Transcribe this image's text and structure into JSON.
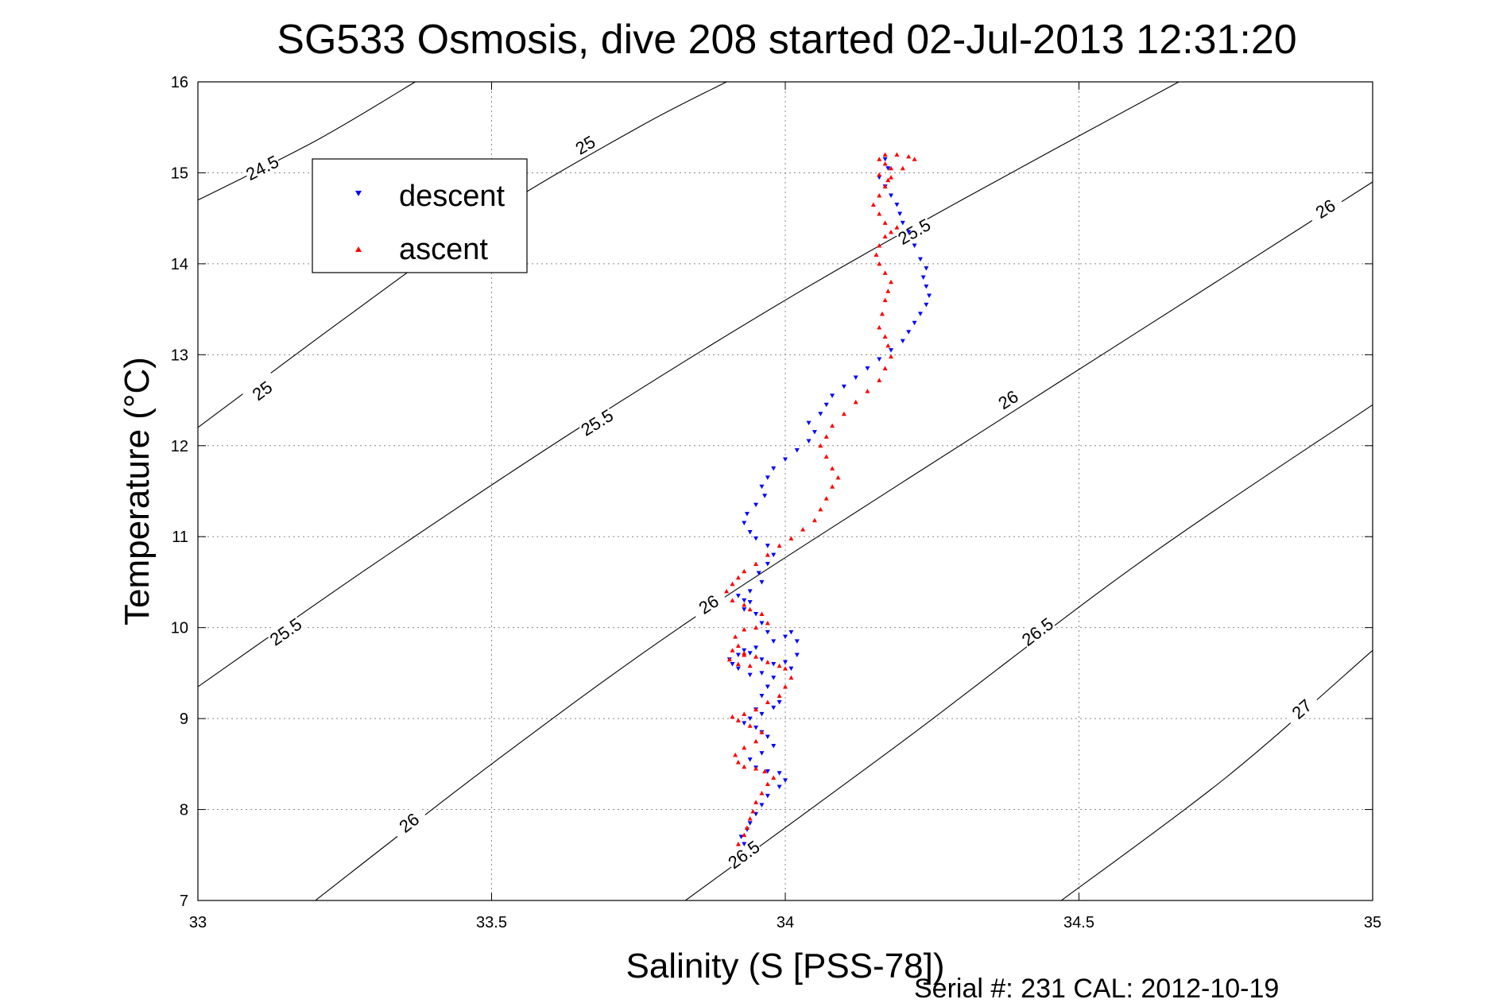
{
  "chart_data": {
    "type": "scatter",
    "title": "SG533 Osmosis, dive 208 started 02-Jul-2013 12:31:20",
    "xlabel": "Salinity (S [PSS-78])",
    "ylabel": "Temperature (°C)",
    "xlim": [
      33,
      35
    ],
    "ylim": [
      7,
      16
    ],
    "xticks": [
      33,
      33.5,
      34,
      34.5,
      35
    ],
    "xtick_labels": [
      "33",
      "33.5",
      "34",
      "34.5",
      "35"
    ],
    "yticks": [
      7,
      8,
      9,
      10,
      11,
      12,
      13,
      14,
      15,
      16
    ],
    "ytick_labels": [
      "7",
      "8",
      "9",
      "10",
      "11",
      "12",
      "13",
      "14",
      "15",
      "16"
    ],
    "grid": true,
    "legend_position": "top-left",
    "footer": "Serial #: 231  CAL: 2012-10-19",
    "contours": [
      {
        "label": "24.5",
        "points": [
          [
            33,
            14.7
          ],
          [
            33.2,
            15.35
          ],
          [
            33.37,
            16
          ]
        ],
        "label_at": [
          [
            33.11,
            15.05
          ]
        ]
      },
      {
        "label": "25",
        "points": [
          [
            33,
            12.2
          ],
          [
            33.25,
            13.4
          ],
          [
            33.5,
            14.55
          ],
          [
            33.75,
            15.5
          ],
          [
            33.9,
            16
          ]
        ],
        "label_at": [
          [
            33.11,
            12.6
          ],
          [
            33.66,
            15.3
          ]
        ]
      },
      {
        "label": "25.5",
        "points": [
          [
            33,
            9.35
          ],
          [
            33.3,
            10.7
          ],
          [
            33.65,
            12.2
          ],
          [
            34.0,
            13.6
          ],
          [
            34.3,
            14.7
          ],
          [
            34.67,
            16
          ]
        ],
        "label_at": [
          [
            33.15,
            9.95
          ],
          [
            33.68,
            12.25
          ],
          [
            34.22,
            14.35
          ]
        ]
      },
      {
        "label": "26",
        "points": [
          [
            33.2,
            7
          ],
          [
            33.5,
            8.5
          ],
          [
            33.82,
            10
          ],
          [
            34.2,
            11.6
          ],
          [
            34.6,
            13.25
          ],
          [
            35,
            14.9
          ]
        ],
        "label_at": [
          [
            33.36,
            7.85
          ],
          [
            33.87,
            10.25
          ],
          [
            34.38,
            12.5
          ],
          [
            34.92,
            14.6
          ]
        ]
      },
      {
        "label": "26.5",
        "points": [
          [
            33.83,
            7
          ],
          [
            34.2,
            8.75
          ],
          [
            34.6,
            10.7
          ],
          [
            35,
            12.45
          ]
        ],
        "label_at": [
          [
            33.93,
            7.5
          ],
          [
            34.43,
            9.95
          ]
        ]
      },
      {
        "label": "27",
        "points": [
          [
            34.47,
            7
          ],
          [
            34.75,
            8.35
          ],
          [
            35,
            9.75
          ]
        ],
        "label_at": [
          [
            34.88,
            9.1
          ]
        ]
      }
    ],
    "series": [
      {
        "name": "descent",
        "marker": "down-triangle",
        "color": "#0000ff",
        "x": [
          33.93,
          33.925,
          33.935,
          33.94,
          33.95,
          33.96,
          33.97,
          33.99,
          34.0,
          33.99,
          33.97,
          33.95,
          33.94,
          33.96,
          33.98,
          33.97,
          33.96,
          33.95,
          33.93,
          33.94,
          33.96,
          33.95,
          33.98,
          33.99,
          33.96,
          33.97,
          33.98,
          33.96,
          33.94,
          33.92,
          33.91,
          33.905,
          33.92,
          33.93,
          33.95,
          33.94,
          33.96,
          33.98,
          34.0,
          34.01,
          34.02,
          34.02,
          34.01,
          34.0,
          33.98,
          33.97,
          33.96,
          33.95,
          33.93,
          33.94,
          33.93,
          33.92,
          33.94,
          33.96,
          33.955,
          33.97,
          33.98,
          33.97,
          33.95,
          33.94,
          33.93,
          33.935,
          33.95,
          33.965,
          33.96,
          33.97,
          33.98,
          34.0,
          34.02,
          34.04,
          34.05,
          34.04,
          34.06,
          34.07,
          34.08,
          34.1,
          34.12,
          34.14,
          34.16,
          34.18,
          34.2,
          34.21,
          34.22,
          34.23,
          34.24,
          34.245,
          34.24,
          34.235,
          34.24,
          34.23,
          34.22,
          34.21,
          34.2,
          34.195,
          34.19,
          34.18,
          34.17,
          34.16,
          34.175,
          34.17
        ],
        "y": [
          7.62,
          7.7,
          7.78,
          7.85,
          7.95,
          8.05,
          8.15,
          8.25,
          8.32,
          8.4,
          8.42,
          8.46,
          8.55,
          8.62,
          8.7,
          8.8,
          8.85,
          8.9,
          8.95,
          9.0,
          9.05,
          9.1,
          9.12,
          9.18,
          9.25,
          9.35,
          9.45,
          9.5,
          9.48,
          9.55,
          9.6,
          9.65,
          9.7,
          9.75,
          9.78,
          9.72,
          9.65,
          9.6,
          9.62,
          9.55,
          9.7,
          9.85,
          9.95,
          9.9,
          9.85,
          9.95,
          10.05,
          10.15,
          10.2,
          10.28,
          10.3,
          10.35,
          10.4,
          10.5,
          10.6,
          10.7,
          10.8,
          10.9,
          10.98,
          11.05,
          11.15,
          11.25,
          11.35,
          11.45,
          11.55,
          11.65,
          11.75,
          11.85,
          11.95,
          12.05,
          12.15,
          12.25,
          12.35,
          12.45,
          12.55,
          12.65,
          12.75,
          12.85,
          12.95,
          13.05,
          13.15,
          13.25,
          13.35,
          13.45,
          13.55,
          13.65,
          13.75,
          13.85,
          13.95,
          14.05,
          14.2,
          14.35,
          14.45,
          14.55,
          14.65,
          14.75,
          14.85,
          14.95,
          15.05,
          15.15
        ]
      },
      {
        "name": "ascent",
        "marker": "up-triangle",
        "color": "#ff0000",
        "x": [
          33.92,
          33.93,
          33.935,
          33.94,
          33.945,
          33.95,
          33.96,
          33.97,
          33.98,
          33.965,
          33.95,
          33.93,
          33.92,
          33.915,
          33.93,
          33.95,
          33.96,
          33.94,
          33.92,
          33.91,
          33.93,
          33.95,
          33.97,
          33.99,
          34.0,
          34.01,
          34.0,
          33.99,
          33.97,
          33.95,
          33.93,
          33.91,
          33.905,
          33.92,
          33.94,
          33.93,
          33.92,
          33.915,
          33.93,
          33.95,
          33.97,
          33.96,
          33.94,
          33.93,
          33.91,
          33.9,
          33.91,
          33.92,
          33.93,
          33.95,
          33.97,
          33.99,
          34.01,
          34.03,
          34.05,
          34.06,
          34.07,
          34.08,
          34.09,
          34.08,
          34.07,
          34.06,
          34.07,
          34.08,
          34.1,
          34.12,
          34.14,
          34.16,
          34.17,
          34.18,
          34.175,
          34.17,
          34.16,
          34.165,
          34.17,
          34.175,
          34.18,
          34.17,
          34.16,
          34.155,
          34.16,
          34.17,
          34.18,
          34.19,
          34.17,
          34.16,
          34.15,
          34.16,
          34.17,
          34.18,
          34.2,
          34.22,
          34.21,
          34.19,
          34.17,
          34.16,
          34.17,
          34.18,
          34.16,
          34.175
        ],
        "y": [
          7.62,
          7.72,
          7.8,
          7.9,
          7.98,
          8.08,
          8.18,
          8.28,
          8.35,
          8.42,
          8.45,
          8.47,
          8.52,
          8.6,
          8.68,
          8.75,
          8.85,
          8.92,
          8.98,
          9.02,
          9.05,
          9.1,
          9.18,
          9.25,
          9.35,
          9.45,
          9.55,
          9.58,
          9.62,
          9.68,
          9.72,
          9.75,
          9.65,
          9.6,
          9.58,
          9.7,
          9.8,
          9.9,
          9.98,
          10.0,
          10.05,
          10.15,
          10.2,
          10.25,
          10.3,
          10.4,
          10.48,
          10.55,
          10.62,
          10.7,
          10.8,
          10.9,
          10.98,
          11.08,
          11.18,
          11.3,
          11.42,
          11.55,
          11.65,
          11.75,
          11.88,
          12.0,
          12.1,
          12.22,
          12.35,
          12.48,
          12.6,
          12.72,
          12.85,
          12.98,
          13.1,
          13.2,
          13.3,
          13.45,
          13.6,
          13.7,
          13.8,
          13.9,
          14.0,
          14.1,
          14.2,
          14.3,
          14.35,
          14.4,
          14.45,
          14.55,
          14.65,
          14.75,
          14.85,
          14.95,
          15.05,
          15.15,
          15.18,
          15.2,
          15.2,
          15.15,
          15.1,
          15.05,
          14.98,
          14.92
        ]
      }
    ]
  }
}
